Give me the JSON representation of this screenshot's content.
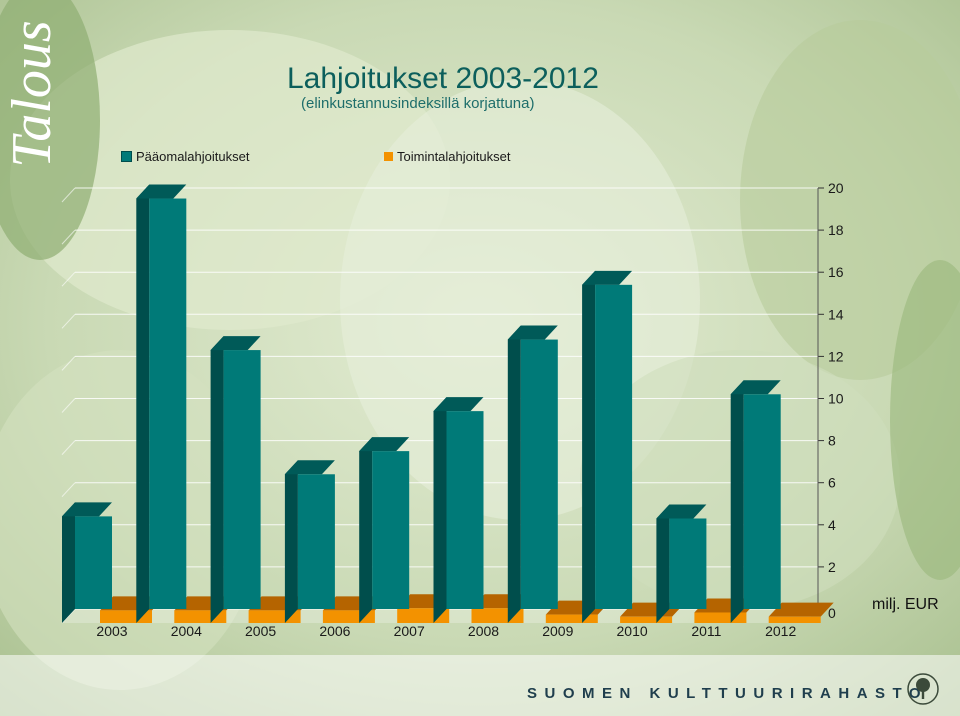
{
  "side_label": "Talous",
  "footer": "SUOMEN KULTTUURIRAHASTO",
  "colors": {
    "main": "#007a78",
    "main_dark": "#004e4c",
    "operating": "#f39200",
    "operating_dark": "#b56400"
  },
  "chart_data": {
    "type": "bar",
    "title": "Lahjoitukset 2003-2012",
    "subtitle": "(elinkustannusindeksillä korjattuna)",
    "unit_label": "milj. EUR",
    "categories": [
      "2003",
      "2004",
      "2005",
      "2006",
      "2007",
      "2008",
      "2009",
      "2010",
      "2011",
      "2012"
    ],
    "series": [
      {
        "name": "Pääomalahjoitukset",
        "values": [
          4.4,
          19.5,
          12.3,
          6.4,
          7.5,
          9.4,
          12.8,
          15.4,
          4.3,
          10.2
        ]
      },
      {
        "name": "Toimintalahjoitukset",
        "values": [
          0.6,
          0.6,
          0.6,
          0.6,
          0.7,
          0.7,
          0.4,
          0.3,
          0.5,
          0.3
        ]
      }
    ],
    "ylim": [
      0,
      20
    ],
    "yticks": [
      "0",
      "2",
      "4",
      "6",
      "8",
      "10",
      "12",
      "14",
      "16",
      "18",
      "20"
    ],
    "axis_side": "right",
    "legend_position": "top",
    "grid": true,
    "three_d": true
  }
}
